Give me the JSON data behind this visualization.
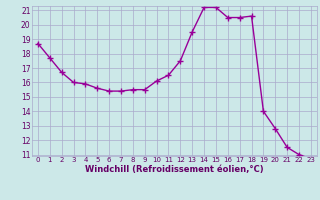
{
  "x": [
    0,
    1,
    2,
    3,
    4,
    5,
    6,
    7,
    8,
    9,
    10,
    11,
    12,
    13,
    14,
    15,
    16,
    17,
    18,
    19,
    20,
    21,
    22,
    23
  ],
  "y": [
    18.7,
    17.7,
    16.7,
    16.0,
    15.9,
    15.6,
    15.4,
    15.4,
    15.5,
    15.5,
    16.1,
    16.5,
    17.5,
    19.5,
    21.2,
    21.2,
    20.5,
    20.5,
    20.6,
    14.0,
    12.8,
    11.5,
    11.0,
    10.7
  ],
  "xlabel": "Windchill (Refroidissement éolien,°C)",
  "ylim": [
    11,
    21
  ],
  "xlim": [
    -0.5,
    23.5
  ],
  "yticks": [
    11,
    12,
    13,
    14,
    15,
    16,
    17,
    18,
    19,
    20,
    21
  ],
  "xticks": [
    0,
    1,
    2,
    3,
    4,
    5,
    6,
    7,
    8,
    9,
    10,
    11,
    12,
    13,
    14,
    15,
    16,
    17,
    18,
    19,
    20,
    21,
    22,
    23
  ],
  "line_color": "#990099",
  "marker": "+",
  "bg_color": "#cce8e8",
  "grid_color": "#aaaacc",
  "xlabel_color": "#660066",
  "tick_color": "#660066",
  "marker_size": 4,
  "line_width": 1.0
}
